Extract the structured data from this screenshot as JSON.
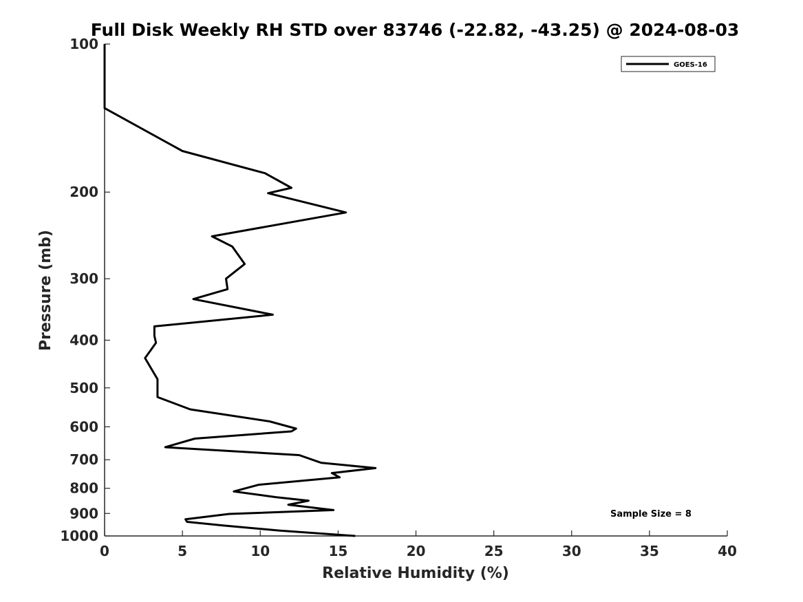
{
  "chart_data": {
    "type": "line",
    "title": "Full Disk Weekly RH STD over 83746 (-22.82, -43.25) @ 2024-08-03",
    "xlabel": "Relative Humidity (%)",
    "ylabel": "Pressure (mb)",
    "xlim": [
      0,
      40
    ],
    "ylim": [
      100,
      1000
    ],
    "yscale": "log",
    "y_reversed": true,
    "x_ticks": [
      "0",
      "5",
      "10",
      "15",
      "20",
      "25",
      "30",
      "35",
      "40"
    ],
    "y_ticks": [
      "100",
      "200",
      "300",
      "400",
      "500",
      "600",
      "700",
      "800",
      "900",
      "1000"
    ],
    "grid": false,
    "legend_position": "top-right",
    "line_color": "#000000",
    "series": [
      {
        "name": "GOES-16",
        "x": [
          0.0,
          0.0,
          5.0,
          10.3,
          12.0,
          10.5,
          15.5,
          6.9,
          8.2,
          9.0,
          7.8,
          7.9,
          5.7,
          10.8,
          3.2,
          3.2,
          3.3,
          2.6,
          3.4,
          3.4,
          5.5,
          10.6,
          12.3,
          12.0,
          5.8,
          3.9,
          12.5,
          13.9,
          17.4,
          14.6,
          15.1,
          9.9,
          8.3,
          11.0,
          13.1,
          11.8,
          14.7,
          8.0,
          5.2,
          5.3,
          7.6,
          11.2,
          16.1
        ],
        "y": [
          100,
          135,
          165,
          183,
          196,
          201,
          220,
          246,
          258,
          280,
          300,
          315,
          330,
          355,
          375,
          392,
          405,
          435,
          480,
          522,
          553,
          585,
          605,
          613,
          634,
          660,
          685,
          710,
          728,
          745,
          760,
          787,
          812,
          834,
          848,
          864,
          886,
          902,
          925,
          936,
          952,
          975,
          1000
        ]
      }
    ],
    "annotation": "Sample Size = 8"
  }
}
